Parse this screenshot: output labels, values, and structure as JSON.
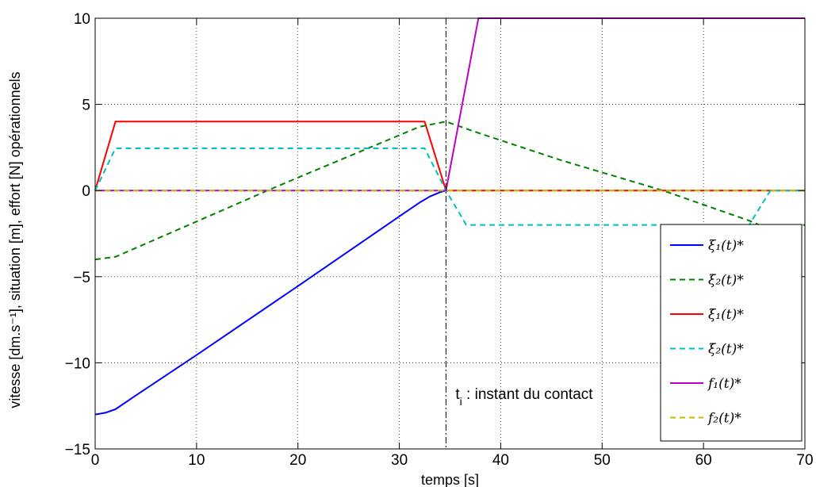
{
  "chart_data": {
    "type": "line",
    "xlabel": "temps [s]",
    "ylabel": "vitesse [dm.s⁻¹], situation [m], effort [N] opérationnels",
    "xlim": [
      0,
      70
    ],
    "ylim": [
      -15,
      10
    ],
    "xticks": [
      0,
      10,
      20,
      30,
      40,
      50,
      60,
      70
    ],
    "yticks": [
      -15,
      -10,
      -5,
      0,
      5,
      10
    ],
    "xtick_labels": [
      "0",
      "10",
      "20",
      "30",
      "40",
      "50",
      "60",
      "70"
    ],
    "ytick_labels": [
      "−15",
      "−10",
      "−5",
      "0",
      "5",
      "10"
    ],
    "grid": true,
    "legend_position": "bottom-right",
    "series": [
      {
        "name": "ξ₁(t)*",
        "color": "#0000ff",
        "dash": "solid",
        "points": [
          [
            0,
            -13
          ],
          [
            1,
            -12.9
          ],
          [
            2,
            -12.7
          ],
          [
            4,
            -11.9
          ],
          [
            10,
            -9.55
          ],
          [
            20,
            -5.55
          ],
          [
            30,
            -1.5
          ],
          [
            32,
            -0.7
          ],
          [
            33,
            -0.35
          ],
          [
            34,
            -0.1
          ],
          [
            34.6,
            0
          ]
        ]
      },
      {
        "name": "ξ₂(t)*",
        "color": "#008000",
        "dash": "dashed",
        "points": [
          [
            0,
            -4
          ],
          [
            2,
            -3.85
          ],
          [
            10,
            -1.8
          ],
          [
            17,
            0
          ],
          [
            20,
            0.75
          ],
          [
            32,
            3.7
          ],
          [
            34.6,
            4
          ],
          [
            38,
            3.3
          ],
          [
            46,
            1.75
          ],
          [
            56,
            0
          ],
          [
            64.5,
            -1.75
          ],
          [
            65.5,
            -2
          ],
          [
            70,
            -2
          ]
        ]
      },
      {
        "name": "ξ̇₁(t)*",
        "color": "#ff0000",
        "dash": "solid",
        "points": [
          [
            0,
            0
          ],
          [
            2,
            4
          ],
          [
            32.5,
            4
          ],
          [
            34.6,
            0
          ],
          [
            70,
            0
          ]
        ]
      },
      {
        "name": "ξ̇₂(t)*",
        "color": "#00bfbf",
        "dash": "dashed",
        "points": [
          [
            0,
            0
          ],
          [
            2,
            2.45
          ],
          [
            32.5,
            2.45
          ],
          [
            34.6,
            0
          ],
          [
            36.6,
            -2
          ],
          [
            64.5,
            -2
          ],
          [
            66.6,
            0
          ],
          [
            70,
            0
          ]
        ]
      },
      {
        "name": "f₁(t)*",
        "color": "#bf00bf",
        "dash": "solid",
        "points": [
          [
            0,
            0
          ],
          [
            34.6,
            0
          ],
          [
            37.8,
            10
          ],
          [
            70,
            10
          ]
        ]
      },
      {
        "name": "f₂(t)*",
        "color": "#bfbf00",
        "dash": "dashed",
        "points": [
          [
            0,
            0
          ],
          [
            70,
            0
          ]
        ]
      }
    ],
    "annotations": [
      {
        "text": "t",
        "subscript": "i",
        "rest": " : instant du contact",
        "x": 34.6
      }
    ]
  }
}
